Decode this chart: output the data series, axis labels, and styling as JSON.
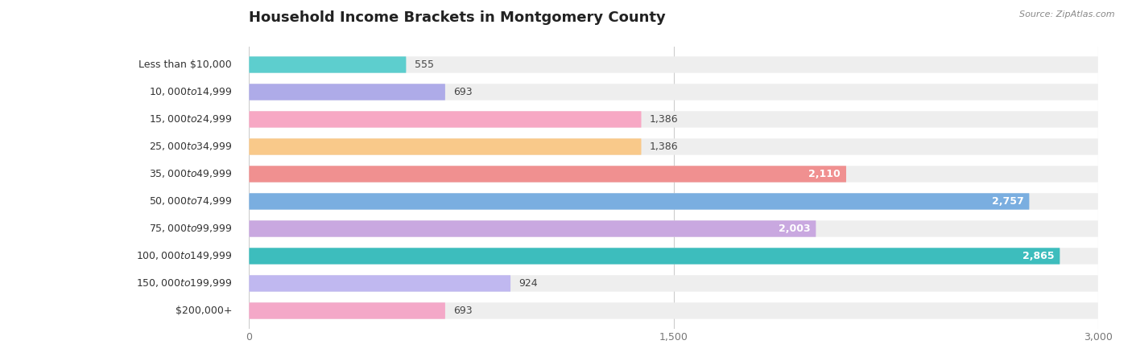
{
  "title": "Household Income Brackets in Montgomery County",
  "source": "Source: ZipAtlas.com",
  "categories": [
    "Less than $10,000",
    "$10,000 to $14,999",
    "$15,000 to $24,999",
    "$25,000 to $34,999",
    "$35,000 to $49,999",
    "$50,000 to $74,999",
    "$75,000 to $99,999",
    "$100,000 to $149,999",
    "$150,000 to $199,999",
    "$200,000+"
  ],
  "values": [
    555,
    693,
    1386,
    1386,
    2110,
    2757,
    2003,
    2865,
    924,
    693
  ],
  "bar_colors": [
    "#5dcece",
    "#aeabe8",
    "#f7a8c4",
    "#f9c98a",
    "#f09090",
    "#7aaee0",
    "#c9a8e0",
    "#3dbdbd",
    "#c0b8f0",
    "#f4a8c8"
  ],
  "bar_bg_color": "#eeeeee",
  "xlim": [
    0,
    3000
  ],
  "xticks": [
    0,
    1500,
    3000
  ],
  "title_fontsize": 13,
  "label_fontsize": 9,
  "value_fontsize": 9,
  "value_inside_threshold": 1800
}
